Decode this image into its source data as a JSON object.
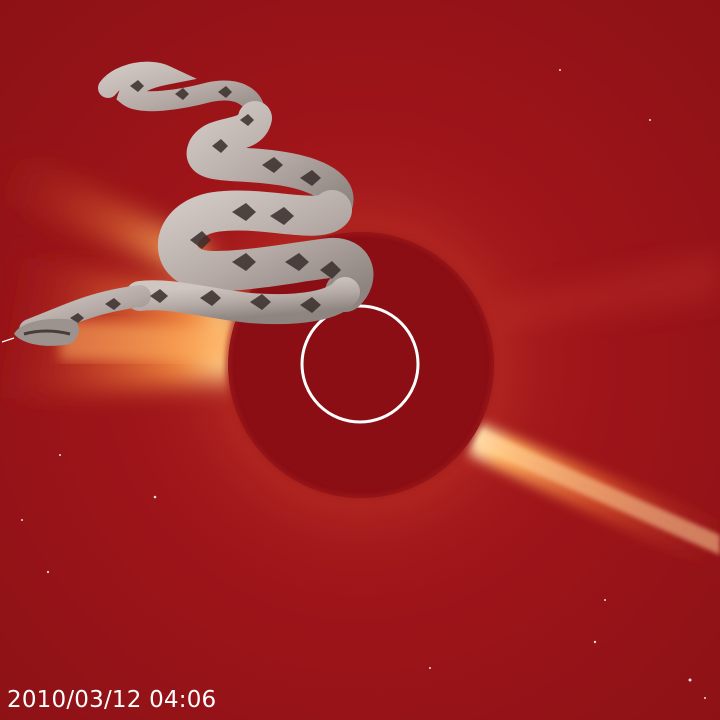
{
  "image": {
    "timestamp": "2010/03/12 04:06",
    "colors": {
      "background": "#9a1418",
      "occulter": "#8a0e14",
      "streamer": "#ffb060",
      "solar_limb_circle": "#ffffff",
      "timestamp_text": "#ffffff"
    },
    "subjects": [
      "coronagraph-occulter-disk",
      "solar-limb-circle",
      "coronal-streamers",
      "boa-snake-overlay"
    ]
  }
}
